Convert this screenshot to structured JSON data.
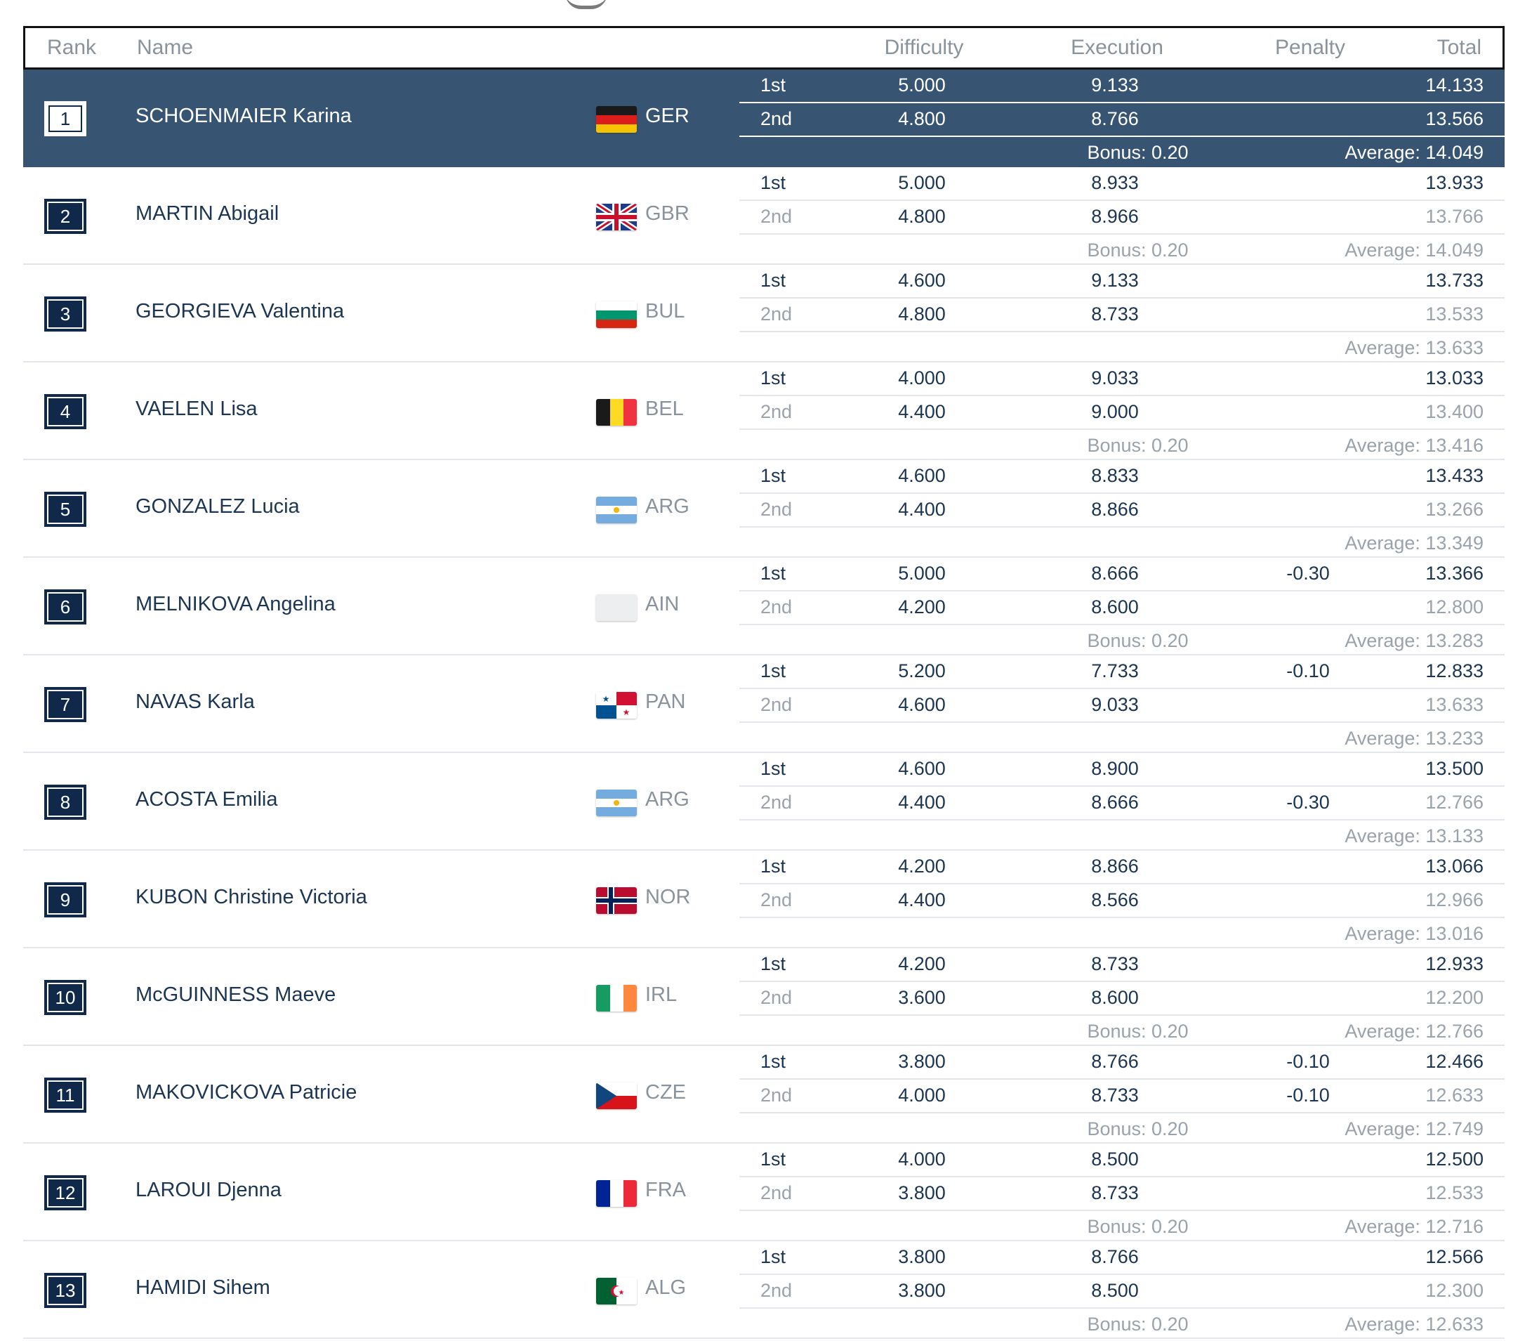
{
  "header": {
    "rank": "Rank",
    "name": "Name",
    "difficulty": "Difficulty",
    "execution": "Execution",
    "penalty": "Penalty",
    "total": "Total"
  },
  "rows": [
    {
      "rank": "1",
      "name": "SCHOENMAIER Karina",
      "country": "GER",
      "flag": "ger",
      "highlight": true,
      "r1": {
        "run": "1st",
        "diff": "5.000",
        "exec": "9.133",
        "pen": "",
        "total": "14.133"
      },
      "r2": {
        "run": "2nd",
        "diff": "4.800",
        "exec": "8.766",
        "pen": "",
        "total": "13.566"
      },
      "bonus": "Bonus: 0.20",
      "average": "Average: 14.049"
    },
    {
      "rank": "2",
      "name": "MARTIN Abigail",
      "country": "GBR",
      "flag": "gbr",
      "highlight": false,
      "r1": {
        "run": "1st",
        "diff": "5.000",
        "exec": "8.933",
        "pen": "",
        "total": "13.933"
      },
      "r2": {
        "run": "2nd",
        "diff": "4.800",
        "exec": "8.966",
        "pen": "",
        "total": "13.766"
      },
      "bonus": "Bonus: 0.20",
      "average": "Average: 14.049"
    },
    {
      "rank": "3",
      "name": "GEORGIEVA Valentina",
      "country": "BUL",
      "flag": "bul",
      "highlight": false,
      "r1": {
        "run": "1st",
        "diff": "4.600",
        "exec": "9.133",
        "pen": "",
        "total": "13.733"
      },
      "r2": {
        "run": "2nd",
        "diff": "4.800",
        "exec": "8.733",
        "pen": "",
        "total": "13.533"
      },
      "bonus": "",
      "average": "Average: 13.633"
    },
    {
      "rank": "4",
      "name": "VAELEN Lisa",
      "country": "BEL",
      "flag": "bel",
      "highlight": false,
      "r1": {
        "run": "1st",
        "diff": "4.000",
        "exec": "9.033",
        "pen": "",
        "total": "13.033"
      },
      "r2": {
        "run": "2nd",
        "diff": "4.400",
        "exec": "9.000",
        "pen": "",
        "total": "13.400"
      },
      "bonus": "Bonus: 0.20",
      "average": "Average: 13.416"
    },
    {
      "rank": "5",
      "name": "GONZALEZ Lucia",
      "country": "ARG",
      "flag": "arg",
      "highlight": false,
      "r1": {
        "run": "1st",
        "diff": "4.600",
        "exec": "8.833",
        "pen": "",
        "total": "13.433"
      },
      "r2": {
        "run": "2nd",
        "diff": "4.400",
        "exec": "8.866",
        "pen": "",
        "total": "13.266"
      },
      "bonus": "",
      "average": "Average: 13.349"
    },
    {
      "rank": "6",
      "name": "MELNIKOVA Angelina",
      "country": "AIN",
      "flag": "ain",
      "highlight": false,
      "r1": {
        "run": "1st",
        "diff": "5.000",
        "exec": "8.666",
        "pen": "-0.30",
        "total": "13.366"
      },
      "r2": {
        "run": "2nd",
        "diff": "4.200",
        "exec": "8.600",
        "pen": "",
        "total": "12.800"
      },
      "bonus": "Bonus: 0.20",
      "average": "Average: 13.283"
    },
    {
      "rank": "7",
      "name": "NAVAS Karla",
      "country": "PAN",
      "flag": "pan",
      "highlight": false,
      "r1": {
        "run": "1st",
        "diff": "5.200",
        "exec": "7.733",
        "pen": "-0.10",
        "total": "12.833"
      },
      "r2": {
        "run": "2nd",
        "diff": "4.600",
        "exec": "9.033",
        "pen": "",
        "total": "13.633"
      },
      "bonus": "",
      "average": "Average: 13.233"
    },
    {
      "rank": "8",
      "name": "ACOSTA Emilia",
      "country": "ARG",
      "flag": "arg",
      "highlight": false,
      "r1": {
        "run": "1st",
        "diff": "4.600",
        "exec": "8.900",
        "pen": "",
        "total": "13.500"
      },
      "r2": {
        "run": "2nd",
        "diff": "4.400",
        "exec": "8.666",
        "pen": "-0.30",
        "total": "12.766"
      },
      "bonus": "",
      "average": "Average: 13.133"
    },
    {
      "rank": "9",
      "name": "KUBON Christine Victoria",
      "country": "NOR",
      "flag": "nor",
      "highlight": false,
      "r1": {
        "run": "1st",
        "diff": "4.200",
        "exec": "8.866",
        "pen": "",
        "total": "13.066"
      },
      "r2": {
        "run": "2nd",
        "diff": "4.400",
        "exec": "8.566",
        "pen": "",
        "total": "12.966"
      },
      "bonus": "",
      "average": "Average: 13.016"
    },
    {
      "rank": "10",
      "name": "McGUINNESS Maeve",
      "country": "IRL",
      "flag": "irl",
      "highlight": false,
      "r1": {
        "run": "1st",
        "diff": "4.200",
        "exec": "8.733",
        "pen": "",
        "total": "12.933"
      },
      "r2": {
        "run": "2nd",
        "diff": "3.600",
        "exec": "8.600",
        "pen": "",
        "total": "12.200"
      },
      "bonus": "Bonus: 0.20",
      "average": "Average: 12.766"
    },
    {
      "rank": "11",
      "name": "MAKOVICKOVA Patricie",
      "country": "CZE",
      "flag": "cze",
      "highlight": false,
      "r1": {
        "run": "1st",
        "diff": "3.800",
        "exec": "8.766",
        "pen": "-0.10",
        "total": "12.466"
      },
      "r2": {
        "run": "2nd",
        "diff": "4.000",
        "exec": "8.733",
        "pen": "-0.10",
        "total": "12.633"
      },
      "bonus": "Bonus: 0.20",
      "average": "Average: 12.749"
    },
    {
      "rank": "12",
      "name": "LAROUI Djenna",
      "country": "FRA",
      "flag": "fra",
      "highlight": false,
      "r1": {
        "run": "1st",
        "diff": "4.000",
        "exec": "8.500",
        "pen": "",
        "total": "12.500"
      },
      "r2": {
        "run": "2nd",
        "diff": "3.800",
        "exec": "8.733",
        "pen": "",
        "total": "12.533"
      },
      "bonus": "Bonus: 0.20",
      "average": "Average: 12.716"
    },
    {
      "rank": "13",
      "name": "HAMIDI Sihem",
      "country": "ALG",
      "flag": "alg",
      "highlight": false,
      "r1": {
        "run": "1st",
        "diff": "3.800",
        "exec": "8.766",
        "pen": "",
        "total": "12.566"
      },
      "r2": {
        "run": "2nd",
        "diff": "3.800",
        "exec": "8.500",
        "pen": "",
        "total": "12.300"
      },
      "bonus": "Bonus: 0.20",
      "average": "Average: 12.633"
    }
  ]
}
